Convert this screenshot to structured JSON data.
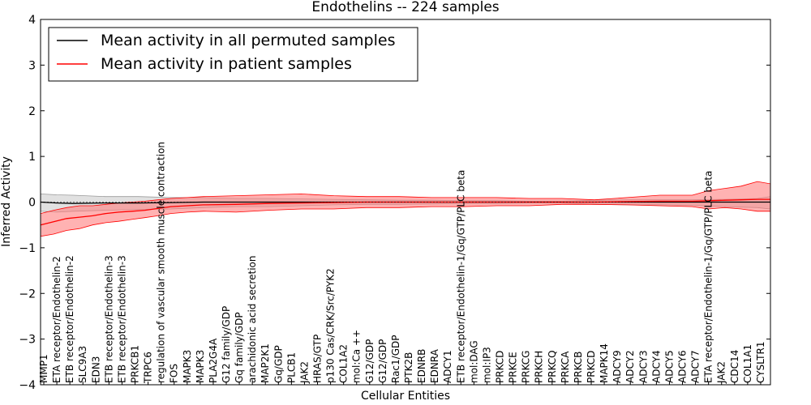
{
  "chart_data": {
    "type": "line",
    "title": "Endothelins -- 224 samples",
    "xlabel": "Cellular Entities",
    "ylabel": "Inferred Activity",
    "ylim": [
      -4,
      4
    ],
    "yticks": [
      -4,
      -3,
      -2,
      -1,
      0,
      1,
      2,
      3,
      4
    ],
    "xlim": [
      0,
      224
    ],
    "grid": false,
    "legend_position": "top-left",
    "legend": [
      {
        "label": "Mean activity in all permuted samples",
        "color": "#000000"
      },
      {
        "label": "Mean activity in patient samples",
        "color": "#ff0000"
      }
    ],
    "colors": {
      "permuted": "#000000",
      "permuted_band": "#c8c8c8",
      "patient": "#ff0000",
      "patient_band": "#ff7f7f",
      "zero_line": "#000000"
    },
    "x_tick_labels": [
      {
        "x": 1,
        "label": "MMP1"
      },
      {
        "x": 5,
        "label": "ETA receptor/Endothelin-2"
      },
      {
        "x": 9,
        "label": "ETB receptor/Endothelin-2"
      },
      {
        "x": 13,
        "label": "SLC9A3"
      },
      {
        "x": 17,
        "label": "EDN3"
      },
      {
        "x": 21,
        "label": "ETB receptor/Endothelin-3"
      },
      {
        "x": 25,
        "label": "ETB receptor/Endothelin-3"
      },
      {
        "x": 29,
        "label": "PRKCB1"
      },
      {
        "x": 33,
        "label": "TRPC6"
      },
      {
        "x": 37,
        "label": "regulation of vascular smooth muscle contraction"
      },
      {
        "x": 41,
        "label": "FOS"
      },
      {
        "x": 45,
        "label": "MAPK3"
      },
      {
        "x": 49,
        "label": "MAPK3"
      },
      {
        "x": 53,
        "label": "PLA2G4A"
      },
      {
        "x": 57,
        "label": "G12 family/GDP"
      },
      {
        "x": 61,
        "label": "Gq family/GDP"
      },
      {
        "x": 65,
        "label": "arachidonic acid secretion"
      },
      {
        "x": 69,
        "label": "MAP2K1"
      },
      {
        "x": 73,
        "label": "Gq/GDP"
      },
      {
        "x": 77,
        "label": "PLCB1"
      },
      {
        "x": 81,
        "label": "JAK2"
      },
      {
        "x": 85,
        "label": "HRAS/GTP"
      },
      {
        "x": 89,
        "label": "p130 Cas/CRK/Src/PYK2"
      },
      {
        "x": 93,
        "label": "COL1A2"
      },
      {
        "x": 97,
        "label": "mol:Ca ++"
      },
      {
        "x": 101,
        "label": "G12/GDP"
      },
      {
        "x": 105,
        "label": "G12/GDP"
      },
      {
        "x": 109,
        "label": "Rac1/GDP"
      },
      {
        "x": 113,
        "label": "PTK2B"
      },
      {
        "x": 117,
        "label": "EDNRB"
      },
      {
        "x": 121,
        "label": "EDNRA"
      },
      {
        "x": 125,
        "label": "ADCY1"
      },
      {
        "x": 129,
        "label": "ETB receptor/Endothelin-1/Gq/GTP/PLC beta"
      },
      {
        "x": 133,
        "label": "mol:DAG"
      },
      {
        "x": 137,
        "label": "mol:IP3"
      },
      {
        "x": 141,
        "label": "PRKCD"
      },
      {
        "x": 145,
        "label": "PRKCE"
      },
      {
        "x": 149,
        "label": "PRKCG"
      },
      {
        "x": 153,
        "label": "PRKCH"
      },
      {
        "x": 157,
        "label": "PRKCQ"
      },
      {
        "x": 161,
        "label": "PRKCA"
      },
      {
        "x": 165,
        "label": "PRKCB"
      },
      {
        "x": 169,
        "label": "PRKCD"
      },
      {
        "x": 173,
        "label": "MAPK14"
      },
      {
        "x": 177,
        "label": "ADCY9"
      },
      {
        "x": 181,
        "label": "ADCY2"
      },
      {
        "x": 185,
        "label": "ADCY3"
      },
      {
        "x": 189,
        "label": "ADCY4"
      },
      {
        "x": 193,
        "label": "ADCY5"
      },
      {
        "x": 197,
        "label": "ADCY6"
      },
      {
        "x": 201,
        "label": "ADCY7"
      },
      {
        "x": 205,
        "label": "ETA receptor/Endothelin-1/Gq/GTP/PLC beta"
      },
      {
        "x": 209,
        "label": "JAK2"
      },
      {
        "x": 213,
        "label": "CDC14"
      },
      {
        "x": 217,
        "label": "COL1A1"
      },
      {
        "x": 221,
        "label": "CYSLTR1"
      }
    ],
    "series": [
      {
        "name": "Mean activity in all permuted samples",
        "x": [
          0,
          5,
          10,
          20,
          30,
          40,
          50,
          60,
          70,
          80,
          90,
          100,
          110,
          120,
          130,
          140,
          150,
          160,
          170,
          180,
          190,
          200,
          210,
          220,
          224
        ],
        "values": [
          0.0,
          -0.02,
          -0.03,
          -0.02,
          -0.02,
          -0.01,
          0.0,
          0.0,
          0.0,
          0.0,
          0.0,
          0.0,
          0.0,
          0.0,
          0.0,
          0.0,
          0.0,
          0.0,
          0.0,
          0.0,
          0.0,
          0.0,
          0.0,
          0.0,
          0.0
        ],
        "lower": [
          -0.2,
          -0.22,
          -0.2,
          -0.18,
          -0.16,
          -0.15,
          -0.12,
          -0.1,
          -0.1,
          -0.08,
          -0.06,
          -0.05,
          -0.05,
          -0.04,
          -0.03,
          -0.03,
          -0.02,
          -0.02,
          -0.05,
          -0.06,
          -0.06,
          -0.07,
          -0.1,
          -0.12,
          -0.15
        ],
        "upper": [
          0.18,
          0.16,
          0.15,
          0.12,
          0.12,
          0.1,
          0.1,
          0.08,
          0.08,
          0.07,
          0.06,
          0.05,
          0.04,
          0.04,
          0.03,
          0.03,
          0.02,
          0.02,
          0.04,
          0.05,
          0.05,
          0.05,
          0.06,
          0.08,
          0.12
        ]
      },
      {
        "name": "Mean activity in patient samples",
        "x": [
          0,
          4,
          8,
          12,
          16,
          20,
          24,
          28,
          32,
          36,
          40,
          45,
          50,
          60,
          70,
          80,
          90,
          100,
          110,
          120,
          130,
          140,
          150,
          160,
          170,
          180,
          190,
          200,
          205,
          210,
          215,
          220,
          224
        ],
        "values": [
          -0.5,
          -0.43,
          -0.36,
          -0.33,
          -0.3,
          -0.25,
          -0.22,
          -0.2,
          -0.18,
          -0.14,
          -0.1,
          -0.08,
          -0.06,
          -0.05,
          -0.03,
          -0.02,
          -0.01,
          0.0,
          0.0,
          0.0,
          0.0,
          0.0,
          0.0,
          0.0,
          0.0,
          0.01,
          0.02,
          0.02,
          0.03,
          0.04,
          0.05,
          0.06,
          0.06
        ],
        "lower": [
          -0.75,
          -0.7,
          -0.62,
          -0.58,
          -0.5,
          -0.45,
          -0.42,
          -0.38,
          -0.34,
          -0.3,
          -0.25,
          -0.22,
          -0.2,
          -0.22,
          -0.18,
          -0.15,
          -0.15,
          -0.12,
          -0.12,
          -0.1,
          -0.1,
          -0.08,
          -0.08,
          -0.05,
          -0.05,
          -0.06,
          -0.08,
          -0.1,
          -0.15,
          -0.12,
          -0.15,
          -0.2,
          -0.2
        ],
        "upper": [
          -0.25,
          -0.18,
          -0.12,
          -0.08,
          -0.08,
          -0.05,
          -0.02,
          0.0,
          0.02,
          0.05,
          0.08,
          0.1,
          0.12,
          0.14,
          0.16,
          0.18,
          0.14,
          0.12,
          0.12,
          0.1,
          0.1,
          0.1,
          0.08,
          0.08,
          0.05,
          0.1,
          0.15,
          0.15,
          0.25,
          0.3,
          0.35,
          0.45,
          0.4
        ]
      }
    ]
  }
}
